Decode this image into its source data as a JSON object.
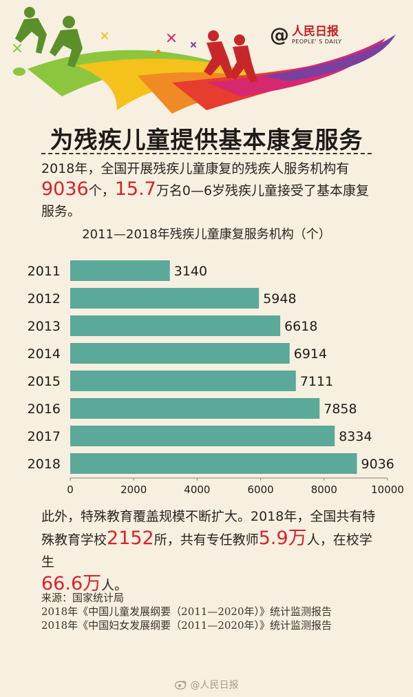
{
  "logo": {
    "at": "@",
    "name": "人民日报",
    "en": "PEOPLE' S DAILY"
  },
  "title": "为残疾儿童提供基本康复服务",
  "intro": {
    "p1": "2018年，全国开展残疾儿童康复的残疾人服务机构有",
    "hl1": "9036",
    "p2": "个，",
    "hl2": "15.7",
    "p3": "万名0—6岁残疾儿童接受了基本康复服务。"
  },
  "chart_title": "2011—2018年残疾儿童康复服务机构（个）",
  "chart_data": {
    "type": "bar",
    "orientation": "horizontal",
    "title": "2011—2018年残疾儿童康复服务机构（个）",
    "categories": [
      "2011",
      "2012",
      "2013",
      "2014",
      "2015",
      "2016",
      "2017",
      "2018"
    ],
    "values": [
      3140,
      5948,
      6618,
      6914,
      7111,
      7858,
      8334,
      9036
    ],
    "value_labels": [
      "3140",
      "5948",
      "6618",
      "6914",
      "7111",
      "7858",
      "8334",
      "9036"
    ],
    "xlim": [
      0,
      10000
    ],
    "xticks": [
      "0",
      "2000",
      "4000",
      "6000",
      "8000",
      "10000"
    ],
    "grid": false,
    "bar_color": "#5aa99a"
  },
  "extra": {
    "p1": "此外，特殊教育覆盖规模不断扩大。2018年，全国共有特殊教育学校",
    "hl1": "2152",
    "p2": "所，共有专任教师",
    "hl2": "5.9万",
    "p3": "人，在校学生",
    "hl3": "66.6万",
    "p4": "人。"
  },
  "source": [
    "来源：国家统计局",
    "2018年《中国儿童发展纲要（2011—2020年）》统计监测报告",
    "2018年《中国妇女发展纲要（2011—2020年）》统计监测报告"
  ],
  "watermark": "@人民日报",
  "colors": {
    "background": "#f7efe0",
    "highlight": "#d3242a",
    "bar": "#5aa99a"
  }
}
